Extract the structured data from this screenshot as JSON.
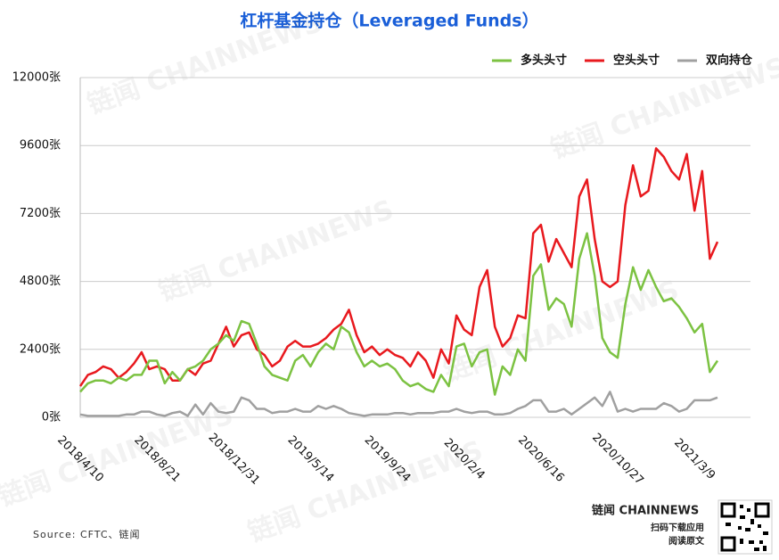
{
  "chart_data": {
    "type": "line",
    "title": "杠杆基金持仓（Leveraged Funds）",
    "source": "Source: CFTC、链闻",
    "watermark": "链闻 CHAINNEWS",
    "brand": {
      "logo": "链闻 CHAINNEWS",
      "line1": "扫码下载应用",
      "line2": "阅读原文"
    },
    "legend": "top-right",
    "grid": true,
    "categories": [
      "2018/4/10",
      null,
      null,
      null,
      null,
      null,
      null,
      null,
      null,
      null,
      "2018/8/21",
      null,
      null,
      null,
      null,
      null,
      null,
      null,
      null,
      null,
      "2018/12/31",
      null,
      null,
      null,
      null,
      null,
      null,
      null,
      null,
      null,
      "2019/5/14",
      null,
      null,
      null,
      null,
      null,
      null,
      null,
      null,
      null,
      "2019/9/24",
      null,
      null,
      null,
      null,
      null,
      null,
      null,
      null,
      null,
      "2020/2/4",
      null,
      null,
      null,
      null,
      null,
      null,
      null,
      null,
      null,
      "2020/6/16",
      null,
      null,
      null,
      null,
      null,
      null,
      null,
      null,
      null,
      "2020/10/27",
      null,
      null,
      null,
      null,
      null,
      null,
      null,
      null,
      null,
      "2021/3/9",
      null,
      null,
      null
    ],
    "ylim": [
      0,
      12000
    ],
    "yticks": [
      {
        "value": 0,
        "label": "0张"
      },
      {
        "value": 2400,
        "label": "2400张"
      },
      {
        "value": 4800,
        "label": "4800张"
      },
      {
        "value": 7200,
        "label": "7200张"
      },
      {
        "value": 9600,
        "label": "9600张"
      },
      {
        "value": 12000,
        "label": "12000张"
      }
    ],
    "series": [
      {
        "name": "多头头寸",
        "color": "#7cc242",
        "values": [
          900,
          1200,
          1300,
          1300,
          1200,
          1400,
          1300,
          1500,
          1500,
          2000,
          2000,
          1200,
          1600,
          1300,
          1700,
          1800,
          2000,
          2400,
          2600,
          2900,
          2700,
          3400,
          3300,
          2600,
          1800,
          1500,
          1400,
          1300,
          2000,
          2200,
          1800,
          2300,
          2600,
          2400,
          3200,
          3000,
          2300,
          1800,
          2000,
          1800,
          1900,
          1700,
          1300,
          1100,
          1200,
          1000,
          900,
          1500,
          1100,
          2500,
          2600,
          1800,
          2300,
          2400,
          800,
          1800,
          1500,
          2400,
          2000,
          5000,
          5400,
          3800,
          4200,
          4000,
          3200,
          5600,
          6500,
          5000,
          2800,
          2300,
          2100,
          4000,
          5300,
          4500,
          5200,
          4600,
          4100,
          4200,
          3900,
          3500,
          3000,
          3300,
          1600,
          2000
        ]
      },
      {
        "name": "空头头寸",
        "color": "#e8191e",
        "values": [
          1100,
          1500,
          1600,
          1800,
          1700,
          1400,
          1600,
          1900,
          2300,
          1700,
          1800,
          1700,
          1300,
          1300,
          1700,
          1500,
          1900,
          2000,
          2600,
          3200,
          2500,
          2900,
          3000,
          2400,
          2200,
          1800,
          2000,
          2500,
          2700,
          2500,
          2500,
          2600,
          2800,
          3100,
          3300,
          3800,
          2900,
          2300,
          2500,
          2200,
          2400,
          2200,
          2100,
          1800,
          2300,
          2000,
          1400,
          2400,
          1900,
          3600,
          3100,
          2900,
          4600,
          5200,
          3200,
          2500,
          2800,
          3600,
          3500,
          6500,
          6800,
          5500,
          6300,
          5800,
          5300,
          7800,
          8400,
          6300,
          4800,
          4600,
          4800,
          7500,
          8900,
          7800,
          8000,
          9500,
          9200,
          8700,
          8400,
          9300,
          7300,
          8700,
          5600,
          6200
        ]
      },
      {
        "name": "双向持仓",
        "color": "#a0a0a0",
        "values": [
          100,
          50,
          50,
          50,
          50,
          50,
          100,
          100,
          200,
          200,
          100,
          50,
          150,
          200,
          50,
          450,
          100,
          500,
          200,
          150,
          200,
          700,
          600,
          300,
          300,
          150,
          200,
          200,
          300,
          200,
          200,
          400,
          300,
          400,
          300,
          150,
          100,
          50,
          100,
          100,
          100,
          150,
          150,
          100,
          150,
          150,
          150,
          200,
          200,
          300,
          200,
          150,
          200,
          200,
          100,
          100,
          150,
          300,
          400,
          600,
          600,
          200,
          200,
          300,
          100,
          300,
          500,
          700,
          400,
          900,
          200,
          300,
          200,
          300,
          300,
          300,
          500,
          400,
          200,
          300,
          600,
          600,
          600,
          700
        ]
      }
    ]
  }
}
